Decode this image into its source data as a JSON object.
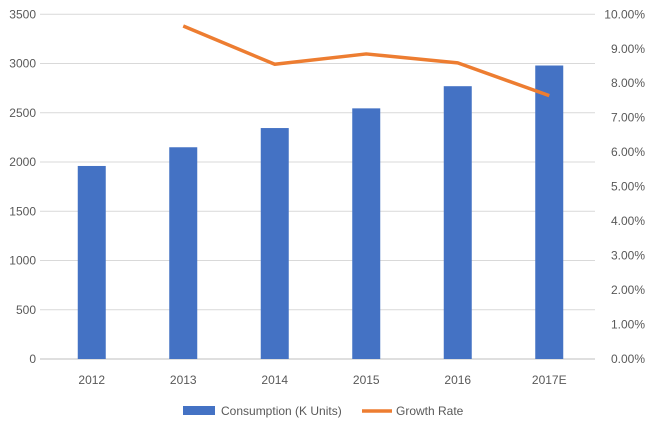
{
  "chart_data": {
    "type": "bar+line",
    "categories": [
      "2012",
      "2013",
      "2014",
      "2015",
      "2016",
      "2017E"
    ],
    "series": [
      {
        "name": "Consumption (K Units)",
        "type": "bar",
        "axis": "left",
        "color": "#4472C4",
        "values": [
          1960,
          2150,
          2345,
          2545,
          2770,
          2980
        ]
      },
      {
        "name": "Growth Rate",
        "type": "line",
        "axis": "right",
        "color": "#ED7D31",
        "values": [
          null,
          0.0966,
          0.0855,
          0.0885,
          0.0859,
          0.0764
        ]
      }
    ],
    "left_axis": {
      "ylim": [
        0,
        3500
      ],
      "ticks": [
        "0",
        "500",
        "1000",
        "1500",
        "2000",
        "2500",
        "3000",
        "3500"
      ]
    },
    "right_axis": {
      "ylim": [
        0,
        0.1
      ],
      "ticks": [
        "0.00%",
        "1.00%",
        "2.00%",
        "3.00%",
        "4.00%",
        "5.00%",
        "6.00%",
        "7.00%",
        "8.00%",
        "9.00%",
        "10.00%"
      ]
    },
    "grid": true,
    "legend": "bottom"
  }
}
